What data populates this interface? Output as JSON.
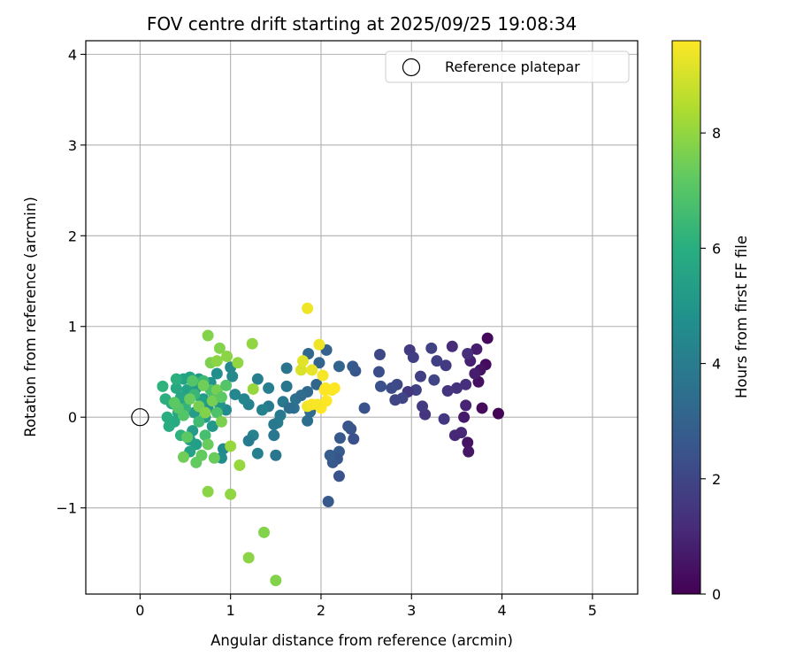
{
  "chart_data": {
    "type": "scatter",
    "title": "FOV centre drift starting at 2025/09/25 19:08:34",
    "xlabel": "Angular distance from reference (arcmin)",
    "ylabel": "Rotation from reference (arcmin)",
    "xlim": [
      -0.6,
      5.5
    ],
    "ylim": [
      -1.95,
      4.15
    ],
    "xticks": [
      0,
      1,
      2,
      3,
      4,
      5
    ],
    "xtick_labels": [
      "0",
      "1",
      "2",
      "3",
      "4",
      "5"
    ],
    "yticks": [
      -1,
      0,
      1,
      2,
      3,
      4
    ],
    "ytick_labels": [
      "−1",
      "0",
      "1",
      "2",
      "3",
      "4"
    ],
    "grid": true,
    "legend": {
      "label": "Reference platepar",
      "location": "top-right",
      "marker": "open-circle"
    },
    "reference_point": {
      "x": 0,
      "y": 0
    },
    "colorbar": {
      "label": "Hours from first FF file",
      "range": [
        0,
        9.6
      ],
      "ticks": [
        0,
        2,
        4,
        6,
        8
      ],
      "tick_labels": [
        "0",
        "2",
        "4",
        "6",
        "8"
      ],
      "colormap": "viridis"
    },
    "points": [
      {
        "x": 3.96,
        "y": 0.04,
        "h": 0.1
      },
      {
        "x": 3.84,
        "y": 0.87,
        "h": 0.2
      },
      {
        "x": 3.82,
        "y": 0.58,
        "h": 0.3
      },
      {
        "x": 3.78,
        "y": 0.1,
        "h": 0.3
      },
      {
        "x": 3.74,
        "y": 0.39,
        "h": 0.4
      },
      {
        "x": 3.76,
        "y": 0.52,
        "h": 0.5
      },
      {
        "x": 3.62,
        "y": -0.28,
        "h": 0.5
      },
      {
        "x": 3.63,
        "y": -0.38,
        "h": 0.6
      },
      {
        "x": 3.58,
        "y": 0.0,
        "h": 0.7
      },
      {
        "x": 3.72,
        "y": 0.75,
        "h": 0.8
      },
      {
        "x": 3.7,
        "y": 0.48,
        "h": 0.8
      },
      {
        "x": 3.65,
        "y": 0.62,
        "h": 0.9
      },
      {
        "x": 3.6,
        "y": 0.13,
        "h": 1.0
      },
      {
        "x": 3.55,
        "y": -0.17,
        "h": 1.1
      },
      {
        "x": 3.48,
        "y": -0.2,
        "h": 1.1
      },
      {
        "x": 3.45,
        "y": 0.78,
        "h": 1.2
      },
      {
        "x": 3.62,
        "y": 0.7,
        "h": 1.3
      },
      {
        "x": 3.6,
        "y": 0.36,
        "h": 1.3
      },
      {
        "x": 3.5,
        "y": 0.32,
        "h": 1.4
      },
      {
        "x": 3.4,
        "y": 0.29,
        "h": 1.5
      },
      {
        "x": 3.36,
        "y": -0.02,
        "h": 1.6
      },
      {
        "x": 3.38,
        "y": 0.57,
        "h": 1.7
      },
      {
        "x": 3.28,
        "y": 0.62,
        "h": 1.8
      },
      {
        "x": 3.22,
        "y": 0.76,
        "h": 1.9
      },
      {
        "x": 3.25,
        "y": 0.41,
        "h": 2.0
      },
      {
        "x": 3.15,
        "y": 0.03,
        "h": 1.5
      },
      {
        "x": 3.1,
        "y": 0.45,
        "h": 1.8
      },
      {
        "x": 3.05,
        "y": 0.3,
        "h": 1.9
      },
      {
        "x": 2.98,
        "y": 0.74,
        "h": 1.7
      },
      {
        "x": 2.96,
        "y": 0.28,
        "h": 1.6
      },
      {
        "x": 2.9,
        "y": 0.21,
        "h": 2.0
      },
      {
        "x": 2.84,
        "y": 0.36,
        "h": 2.1
      },
      {
        "x": 2.78,
        "y": 0.32,
        "h": 2.2
      },
      {
        "x": 2.65,
        "y": 0.69,
        "h": 2.1
      },
      {
        "x": 3.02,
        "y": 0.66,
        "h": 1.8
      },
      {
        "x": 3.12,
        "y": 0.12,
        "h": 1.7
      },
      {
        "x": 2.82,
        "y": 0.19,
        "h": 2.0
      },
      {
        "x": 2.64,
        "y": 0.5,
        "h": 2.3
      },
      {
        "x": 2.66,
        "y": 0.34,
        "h": 2.4
      },
      {
        "x": 2.38,
        "y": 0.51,
        "h": 2.6
      },
      {
        "x": 2.35,
        "y": 0.56,
        "h": 2.7
      },
      {
        "x": 2.48,
        "y": 0.1,
        "h": 2.5
      },
      {
        "x": 2.36,
        "y": -0.24,
        "h": 2.4
      },
      {
        "x": 2.33,
        "y": -0.13,
        "h": 2.5
      },
      {
        "x": 2.3,
        "y": -0.1,
        "h": 2.6
      },
      {
        "x": 2.21,
        "y": -0.23,
        "h": 2.7
      },
      {
        "x": 2.2,
        "y": -0.38,
        "h": 2.8
      },
      {
        "x": 2.18,
        "y": -0.46,
        "h": 2.6
      },
      {
        "x": 2.13,
        "y": -0.5,
        "h": 2.7
      },
      {
        "x": 2.1,
        "y": -0.42,
        "h": 2.9
      },
      {
        "x": 2.2,
        "y": -0.65,
        "h": 2.5
      },
      {
        "x": 2.08,
        "y": -0.93,
        "h": 2.7
      },
      {
        "x": 2.06,
        "y": 0.74,
        "h": 3.0
      },
      {
        "x": 2.2,
        "y": 0.56,
        "h": 3.1
      },
      {
        "x": 1.98,
        "y": 0.6,
        "h": 3.1
      },
      {
        "x": 1.86,
        "y": 0.7,
        "h": 3.2
      },
      {
        "x": 1.95,
        "y": 0.36,
        "h": 3.2
      },
      {
        "x": 1.85,
        "y": 0.28,
        "h": 3.3
      },
      {
        "x": 1.88,
        "y": 0.06,
        "h": 3.4
      },
      {
        "x": 1.85,
        "y": -0.04,
        "h": 3.5
      },
      {
        "x": 1.72,
        "y": 0.2,
        "h": 3.6
      },
      {
        "x": 1.7,
        "y": 0.1,
        "h": 3.6
      },
      {
        "x": 1.62,
        "y": 0.54,
        "h": 3.7
      },
      {
        "x": 1.62,
        "y": 0.34,
        "h": 3.8
      },
      {
        "x": 1.58,
        "y": 0.17,
        "h": 3.9
      },
      {
        "x": 1.55,
        "y": 0.02,
        "h": 3.9
      },
      {
        "x": 1.52,
        "y": -0.06,
        "h": 4.0
      },
      {
        "x": 1.48,
        "y": -0.08,
        "h": 3.9
      },
      {
        "x": 1.48,
        "y": -0.2,
        "h": 3.8
      },
      {
        "x": 1.5,
        "y": -0.42,
        "h": 3.8
      },
      {
        "x": 1.42,
        "y": 0.12,
        "h": 4.0
      },
      {
        "x": 1.42,
        "y": 0.32,
        "h": 4.1
      },
      {
        "x": 1.35,
        "y": 0.08,
        "h": 4.2
      },
      {
        "x": 1.3,
        "y": 0.42,
        "h": 4.1
      },
      {
        "x": 1.25,
        "y": -0.2,
        "h": 4.3
      },
      {
        "x": 1.3,
        "y": -0.4,
        "h": 4.2
      },
      {
        "x": 1.2,
        "y": -0.26,
        "h": 4.0
      },
      {
        "x": 1.2,
        "y": 0.14,
        "h": 4.3
      },
      {
        "x": 1.15,
        "y": 0.2,
        "h": 4.4
      },
      {
        "x": 1.05,
        "y": 0.25,
        "h": 4.4
      },
      {
        "x": 1.02,
        "y": 0.45,
        "h": 4.5
      },
      {
        "x": 1.0,
        "y": 0.55,
        "h": 4.5
      },
      {
        "x": 0.95,
        "y": 0.08,
        "h": 4.6
      },
      {
        "x": 0.92,
        "y": -0.35,
        "h": 4.6
      },
      {
        "x": 0.9,
        "y": -0.45,
        "h": 4.7
      },
      {
        "x": 1.65,
        "y": 0.1,
        "h": 3.5
      },
      {
        "x": 1.78,
        "y": 0.24,
        "h": 3.4
      },
      {
        "x": 0.85,
        "y": 0.48,
        "h": 4.8
      },
      {
        "x": 0.82,
        "y": 0.25,
        "h": 4.9
      },
      {
        "x": 0.78,
        "y": 0.38,
        "h": 4.9
      },
      {
        "x": 0.75,
        "y": 0.1,
        "h": 5.0
      },
      {
        "x": 0.7,
        "y": 0.2,
        "h": 5.1
      },
      {
        "x": 0.65,
        "y": 0.42,
        "h": 5.2
      },
      {
        "x": 0.62,
        "y": 0.32,
        "h": 5.2
      },
      {
        "x": 0.6,
        "y": 0.05,
        "h": 5.3
      },
      {
        "x": 0.58,
        "y": -0.15,
        "h": 5.3
      },
      {
        "x": 0.55,
        "y": -0.25,
        "h": 5.4
      },
      {
        "x": 0.52,
        "y": 0.3,
        "h": 5.5
      },
      {
        "x": 0.5,
        "y": 0.15,
        "h": 5.5
      },
      {
        "x": 0.48,
        "y": 0.42,
        "h": 5.6
      },
      {
        "x": 0.45,
        "y": 0.22,
        "h": 5.7
      },
      {
        "x": 0.42,
        "y": 0.05,
        "h": 5.7
      },
      {
        "x": 0.4,
        "y": 0.32,
        "h": 5.8
      },
      {
        "x": 0.38,
        "y": -0.05,
        "h": 5.9
      },
      {
        "x": 0.35,
        "y": 0.15,
        "h": 5.9
      },
      {
        "x": 0.32,
        "y": -0.1,
        "h": 6.0
      },
      {
        "x": 0.3,
        "y": 0.0,
        "h": 6.0
      },
      {
        "x": 0.28,
        "y": 0.2,
        "h": 6.1
      },
      {
        "x": 0.25,
        "y": 0.34,
        "h": 6.2
      },
      {
        "x": 0.4,
        "y": 0.42,
        "h": 6.1
      },
      {
        "x": 0.55,
        "y": 0.44,
        "h": 5.6
      },
      {
        "x": 0.68,
        "y": 0.18,
        "h": 5.4
      },
      {
        "x": 0.72,
        "y": 0.0,
        "h": 5.3
      },
      {
        "x": 0.88,
        "y": 0.14,
        "h": 5.0
      },
      {
        "x": 0.8,
        "y": -0.1,
        "h": 5.1
      },
      {
        "x": 0.62,
        "y": -0.3,
        "h": 5.4
      },
      {
        "x": 0.55,
        "y": -0.38,
        "h": 5.5
      },
      {
        "x": 0.45,
        "y": -0.2,
        "h": 6.2
      },
      {
        "x": 0.5,
        "y": 0.1,
        "h": 6.3
      },
      {
        "x": 0.6,
        "y": 0.25,
        "h": 6.4
      },
      {
        "x": 0.7,
        "y": 0.4,
        "h": 6.5
      },
      {
        "x": 0.65,
        "y": -0.05,
        "h": 6.6
      },
      {
        "x": 0.72,
        "y": -0.2,
        "h": 6.7
      },
      {
        "x": 0.78,
        "y": 0.3,
        "h": 6.8
      },
      {
        "x": 0.85,
        "y": 0.05,
        "h": 6.9
      },
      {
        "x": 0.58,
        "y": 0.4,
        "h": 7.0
      },
      {
        "x": 0.48,
        "y": 0.02,
        "h": 7.0
      },
      {
        "x": 0.42,
        "y": 0.1,
        "h": 7.1
      },
      {
        "x": 0.38,
        "y": 0.16,
        "h": 7.2
      },
      {
        "x": 0.52,
        "y": -0.22,
        "h": 7.2
      },
      {
        "x": 0.62,
        "y": -0.5,
        "h": 7.3
      },
      {
        "x": 0.68,
        "y": -0.42,
        "h": 7.3
      },
      {
        "x": 0.75,
        "y": -0.3,
        "h": 7.4
      },
      {
        "x": 0.82,
        "y": -0.45,
        "h": 7.4
      },
      {
        "x": 0.48,
        "y": -0.44,
        "h": 7.5
      },
      {
        "x": 0.7,
        "y": 0.35,
        "h": 7.5
      },
      {
        "x": 0.8,
        "y": 0.18,
        "h": 7.6
      },
      {
        "x": 0.85,
        "y": 0.3,
        "h": 7.6
      },
      {
        "x": 0.9,
        "y": -0.05,
        "h": 7.7
      },
      {
        "x": 0.78,
        "y": 0.6,
        "h": 7.7
      },
      {
        "x": 0.75,
        "y": 0.9,
        "h": 7.8
      },
      {
        "x": 0.88,
        "y": 0.76,
        "h": 7.8
      },
      {
        "x": 0.85,
        "y": 0.62,
        "h": 7.9
      },
      {
        "x": 0.96,
        "y": 0.67,
        "h": 7.9
      },
      {
        "x": 1.08,
        "y": 0.6,
        "h": 8.0
      },
      {
        "x": 1.24,
        "y": 0.81,
        "h": 8.0
      },
      {
        "x": 1.25,
        "y": 0.31,
        "h": 8.1
      },
      {
        "x": 1.0,
        "y": -0.32,
        "h": 8.1
      },
      {
        "x": 1.1,
        "y": -0.53,
        "h": 8.1
      },
      {
        "x": 0.75,
        "y": -0.82,
        "h": 7.9
      },
      {
        "x": 1.0,
        "y": -0.85,
        "h": 8.0
      },
      {
        "x": 1.37,
        "y": -1.27,
        "h": 7.8
      },
      {
        "x": 1.2,
        "y": -1.55,
        "h": 7.9
      },
      {
        "x": 1.5,
        "y": -1.8,
        "h": 7.8
      },
      {
        "x": 0.65,
        "y": 0.12,
        "h": 7.6
      },
      {
        "x": 0.55,
        "y": 0.2,
        "h": 7.4
      },
      {
        "x": 0.9,
        "y": 0.22,
        "h": 7.2
      },
      {
        "x": 0.95,
        "y": 0.35,
        "h": 7.0
      },
      {
        "x": 0.72,
        "y": 0.05,
        "h": 7.8
      },
      {
        "x": 1.78,
        "y": 0.52,
        "h": 9.1
      },
      {
        "x": 1.8,
        "y": 0.62,
        "h": 9.2
      },
      {
        "x": 1.9,
        "y": 0.52,
        "h": 9.3
      },
      {
        "x": 1.85,
        "y": 1.2,
        "h": 9.4
      },
      {
        "x": 1.98,
        "y": 0.8,
        "h": 9.4
      },
      {
        "x": 2.02,
        "y": 0.46,
        "h": 9.5
      },
      {
        "x": 2.05,
        "y": 0.32,
        "h": 9.5
      },
      {
        "x": 2.12,
        "y": 0.3,
        "h": 9.5
      },
      {
        "x": 2.15,
        "y": 0.32,
        "h": 9.6
      },
      {
        "x": 2.06,
        "y": 0.18,
        "h": 9.6
      },
      {
        "x": 2.0,
        "y": 0.1,
        "h": 9.6
      },
      {
        "x": 1.96,
        "y": 0.14,
        "h": 9.5
      },
      {
        "x": 1.85,
        "y": 0.12,
        "h": 9.4
      },
      {
        "x": 1.9,
        "y": 0.14,
        "h": 9.5
      },
      {
        "x": 2.04,
        "y": 0.3,
        "h": 9.6
      }
    ]
  }
}
